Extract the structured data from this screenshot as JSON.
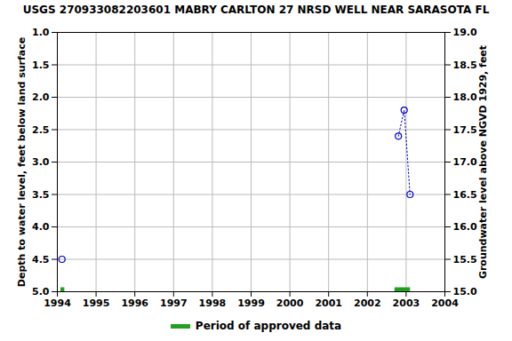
{
  "chart_data": {
    "type": "line",
    "title": "USGS 270933082203601 MABRY CARLTON 27 NRSD WELL NEAR SARASOTA FL",
    "y_label": "Depth to water level, feet below land surface",
    "y2_label": "Groundwater level above NGVD 1929, feet",
    "x": [
      1994.12,
      null,
      2002.8,
      2002.95,
      2003.1
    ],
    "values": [
      4.5,
      null,
      2.6,
      2.2,
      3.5
    ],
    "color": "#0000cc",
    "marker": "circle",
    "line_style": "dotted",
    "approved_periods": {
      "name": "Period of approved data",
      "color": "#22a022",
      "ranges": [
        [
          1994.08,
          1994.18
        ],
        [
          2002.7,
          2003.1
        ]
      ]
    },
    "xlim": [
      1994,
      2004
    ],
    "xticks": [
      1994,
      1995,
      1996,
      1997,
      1998,
      1999,
      2000,
      2001,
      2002,
      2003,
      2004
    ],
    "ylim": [
      5,
      1
    ],
    "yticks": [
      {
        "value": 1,
        "label": "1.0"
      },
      {
        "value": 1.5,
        "label": "1.5"
      },
      {
        "value": 2,
        "label": "2.0"
      },
      {
        "value": 2.5,
        "label": "2.5"
      },
      {
        "value": 3,
        "label": "3.0"
      },
      {
        "value": 3.5,
        "label": "3.5"
      },
      {
        "value": 4,
        "label": "4.0"
      },
      {
        "value": 4.5,
        "label": "4.5"
      },
      {
        "value": 5,
        "label": "5.0"
      }
    ],
    "y2lim": [
      15,
      19
    ],
    "y2ticks": [
      {
        "value": 15,
        "label": "15.0"
      },
      {
        "value": 15.5,
        "label": "15.5"
      },
      {
        "value": 16,
        "label": "16.0"
      },
      {
        "value": 16.5,
        "label": "16.5"
      },
      {
        "value": 17,
        "label": "17.0"
      },
      {
        "value": 17.5,
        "label": "17.5"
      },
      {
        "value": 18,
        "label": "18.0"
      },
      {
        "value": 18.5,
        "label": "18.5"
      },
      {
        "value": 19,
        "label": "19.0"
      }
    ],
    "grid": true
  }
}
